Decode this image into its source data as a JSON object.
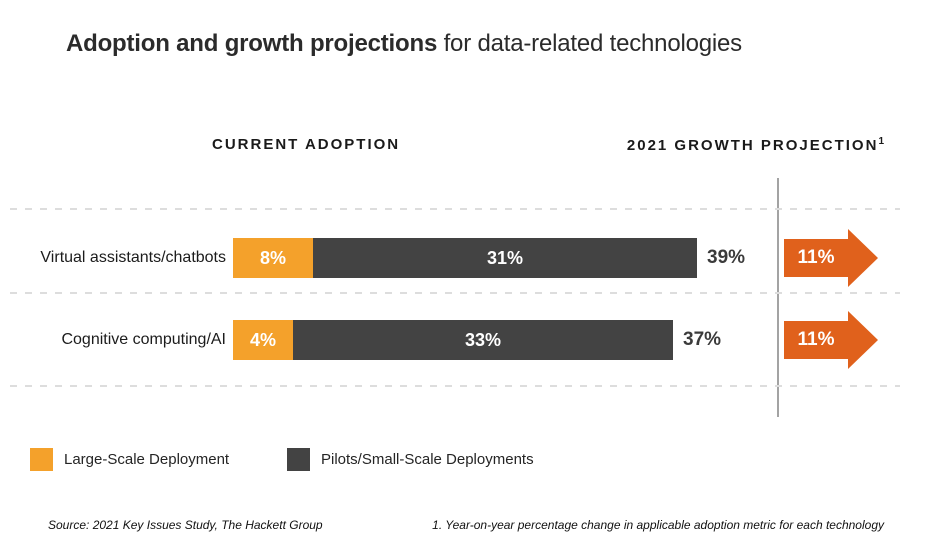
{
  "title": {
    "bold": "Adoption and growth projections",
    "regular": " for data-related technologies"
  },
  "headers": {
    "current_adoption": "CURRENT ADOPTION",
    "growth_projection": "2021 GROWTH PROJECTION",
    "footnote_mark": "1"
  },
  "chart_data": {
    "type": "bar",
    "orientation": "horizontal",
    "stacked": true,
    "title": "Adoption and growth projections for data-related technologies",
    "categories": [
      "Virtual assistants/chatbots",
      "Cognitive computing/AI"
    ],
    "series": [
      {
        "name": "Large-Scale Deployment",
        "values": [
          8,
          4
        ]
      },
      {
        "name": "Pilots/Small-Scale Deployments",
        "values": [
          31,
          33
        ]
      }
    ],
    "totals": [
      39,
      37
    ],
    "growth_projection_2021": [
      11,
      11
    ],
    "value_unit": "%",
    "legend_position": "bottom",
    "grid": "dashed-row-separators"
  },
  "rows": [
    {
      "label": "Virtual assistants/chatbots",
      "large_scale_label": "8%",
      "pilots_label": "31%",
      "total_label": "39%",
      "growth_label": "11%"
    },
    {
      "label": "Cognitive computing/AI",
      "large_scale_label": "4%",
      "pilots_label": "33%",
      "total_label": "37%",
      "growth_label": "11%"
    }
  ],
  "legend": {
    "large_scale": "Large-Scale Deployment",
    "pilots": "Pilots/Small-Scale Deployments"
  },
  "footer": {
    "source": "Source: 2021 Key Issues Study, The Hackett Group",
    "footnote": "1. Year-on-year percentage change in applicable adoption metric for each technology"
  },
  "colors": {
    "large_scale_orange": "#F4A12B",
    "pilots_dark": "#434343",
    "arrow_orange": "#E0611C",
    "divider_gray": "#A3A3A3",
    "dashed_gray": "#DDDDDD"
  }
}
